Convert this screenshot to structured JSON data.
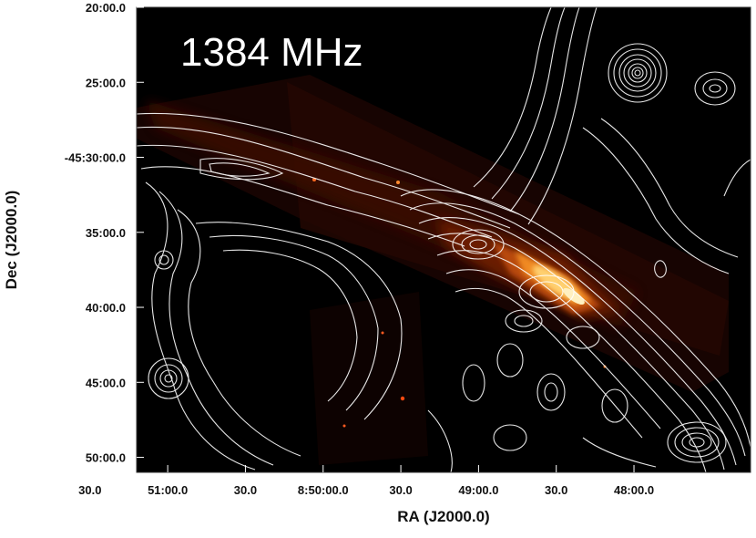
{
  "chart_data": {
    "type": "heatmap",
    "title": "1384 MHz",
    "xlabel": "RA (J2000.0)",
    "ylabel": "Dec (J2000.0)",
    "x_ticks": [
      "30.0",
      "51:00.0",
      "30.0",
      "8:50:00.0",
      "30.0",
      "49:00.0",
      "30.0",
      "48:00.0"
    ],
    "y_ticks": [
      "20:00.0",
      "25:00.0",
      "-45:30:00.0",
      "35:00.0",
      "40:00.0",
      "45:00.0",
      "50:00.0"
    ],
    "xlim": [
      "8:51:42",
      "8:47:45"
    ],
    "ylim": [
      "-45:51:00",
      "-45:20:00"
    ],
    "background": "#000000",
    "colormap": "heat",
    "contour_color": "#ffffff",
    "grid": false
  }
}
